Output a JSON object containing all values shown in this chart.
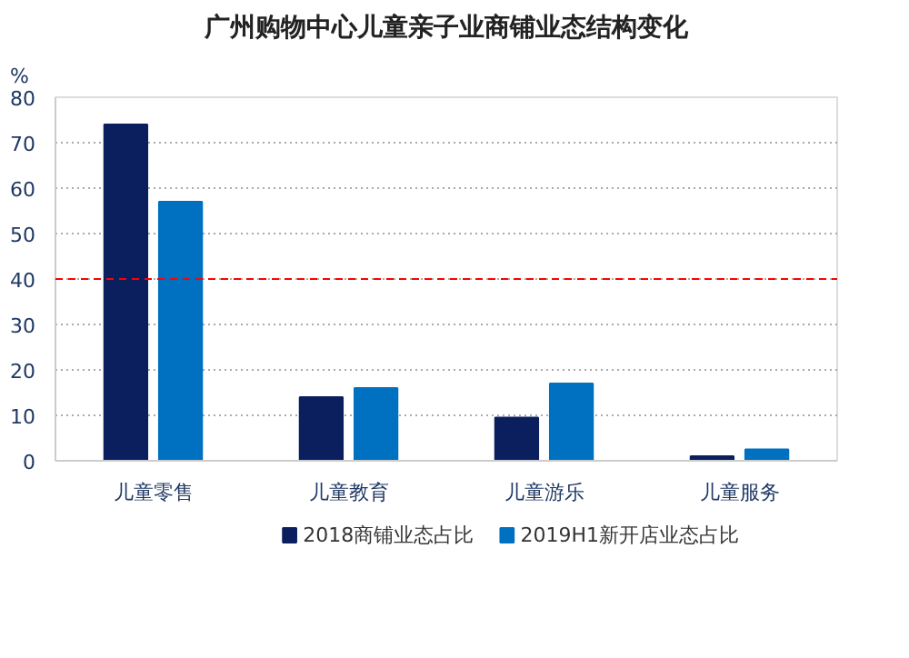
{
  "chart_data": {
    "type": "bar",
    "title": "广州购物中心儿童亲子业商铺业态结构变化",
    "ylabel": "%",
    "categories": [
      "儿童零售",
      "儿童教育",
      "儿童游乐",
      "儿童服务"
    ],
    "series": [
      {
        "name": "2018商铺业态占比",
        "color": "#0b1f5e",
        "values": [
          74,
          14,
          9.5,
          1
        ]
      },
      {
        "name": "2019H1新开店业态占比",
        "color": "#0070c0",
        "values": [
          57,
          16,
          17,
          2.5
        ]
      }
    ],
    "ylim": [
      0,
      80
    ],
    "yticks": [
      0,
      10,
      20,
      30,
      40,
      50,
      60,
      70,
      80
    ],
    "ref_lines": [
      {
        "axis": "y",
        "value": 40,
        "color": "#ff0000",
        "line_style": "dashed"
      }
    ],
    "grid": "y",
    "legend": "bottom"
  }
}
